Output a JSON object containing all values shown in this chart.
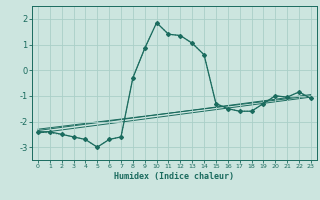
{
  "xlabel": "Humidex (Indice chaleur)",
  "xlim": [
    -0.5,
    23.5
  ],
  "ylim": [
    -3.5,
    2.5
  ],
  "yticks": [
    -3,
    -2,
    -1,
    0,
    1,
    2
  ],
  "xticks": [
    0,
    1,
    2,
    3,
    4,
    5,
    6,
    7,
    8,
    9,
    10,
    11,
    12,
    13,
    14,
    15,
    16,
    17,
    18,
    19,
    20,
    21,
    22,
    23
  ],
  "bg_color": "#cce5df",
  "grid_color": "#aacfc8",
  "line_color": "#1a6b5e",
  "curve1_x": [
    0,
    1,
    2,
    3,
    4,
    5,
    6,
    7,
    8,
    9,
    10,
    11,
    12,
    13,
    14,
    15,
    16,
    17,
    18,
    19,
    20,
    21,
    22,
    23
  ],
  "curve1_y": [
    -2.4,
    -2.4,
    -2.5,
    -2.6,
    -2.7,
    -3.0,
    -2.7,
    -2.6,
    -0.3,
    0.85,
    1.85,
    1.4,
    1.35,
    1.05,
    0.6,
    -1.3,
    -1.5,
    -1.6,
    -1.6,
    -1.3,
    -1.0,
    -1.05,
    -0.85,
    -1.1
  ],
  "curve2_x": [
    0,
    2,
    3,
    4,
    5,
    6,
    7,
    8,
    9,
    10,
    11,
    12,
    13,
    14,
    15,
    16,
    17,
    18,
    19,
    20,
    21,
    22,
    23
  ],
  "curve2_y": [
    -2.4,
    -2.5,
    -2.6,
    -2.7,
    -3.0,
    -2.7,
    -2.6,
    -0.3,
    0.85,
    1.85,
    1.4,
    1.35,
    1.05,
    0.6,
    -1.3,
    -1.5,
    -1.6,
    -1.6,
    -1.3,
    -1.0,
    -1.05,
    -0.85,
    -1.1
  ],
  "line1_x": [
    0,
    23
  ],
  "line1_y": [
    -2.45,
    -1.05
  ],
  "line2_x": [
    0,
    23
  ],
  "line2_y": [
    -2.35,
    -0.95
  ],
  "line3_x": [
    0,
    23
  ],
  "line3_y": [
    -2.3,
    -1.0
  ]
}
